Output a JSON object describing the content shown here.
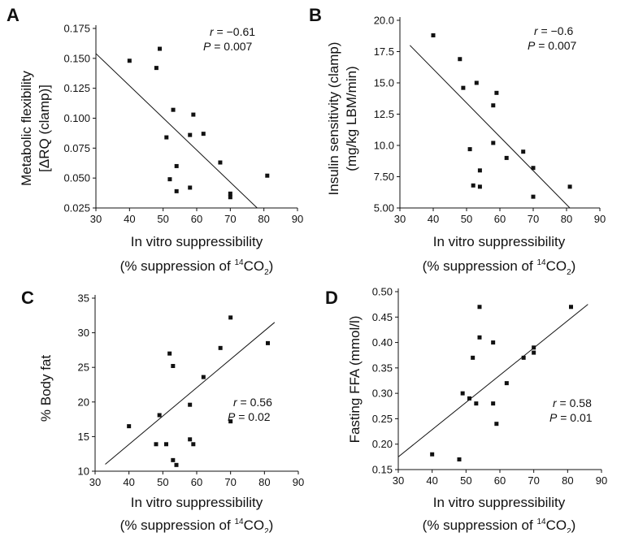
{
  "figure": {
    "panels": [
      {
        "letter": "A",
        "ylabel_lines": [
          "Metabolic flexibility",
          "[ΔRQ (clamp)]"
        ],
        "xlabel_line1": "In vitro suppressibility",
        "xlabel_line2_pre": "(% suppression of ",
        "xlabel_sup": "14",
        "xlabel_co": "CO",
        "xlabel_sub": "2",
        "xlabel_close": ")",
        "r_label": "r",
        "r_value": " = −0.61",
        "p_label": "P",
        "p_value": " = 0.007",
        "x_ticks": [
          "30",
          "40",
          "50",
          "60",
          "70",
          "80",
          "90"
        ],
        "y_ticks": [
          "0.025",
          "0.050",
          "0.075",
          "0.100",
          "0.125",
          "0.150",
          "0.175"
        ]
      },
      {
        "letter": "B",
        "ylabel_lines": [
          "Insulin sensitivity (clamp)",
          "(mg/kg LBM/min)"
        ],
        "xlabel_line1": "In vitro suppressibility",
        "xlabel_line2_pre": "(% suppression of ",
        "xlabel_sup": "14",
        "xlabel_co": "CO",
        "xlabel_sub": "2",
        "xlabel_close": ")",
        "r_label": "r",
        "r_value": " = −0.6",
        "p_label": "P",
        "p_value": " = 0.007",
        "x_ticks": [
          "30",
          "40",
          "50",
          "60",
          "70",
          "80",
          "90"
        ],
        "y_ticks": [
          "5.00",
          "7.50",
          "10.0",
          "12.5",
          "15.0",
          "17.5",
          "20.0"
        ]
      },
      {
        "letter": "C",
        "ylabel_lines": [
          "% Body fat"
        ],
        "xlabel_line1": "In vitro suppressibility",
        "xlabel_line2_pre": "(% suppression of ",
        "xlabel_sup": "14",
        "xlabel_co": "CO",
        "xlabel_sub": "2",
        "xlabel_close": ")",
        "r_label": "r",
        "r_value": " = 0.56",
        "p_label": "P",
        "p_value": " = 0.02",
        "x_ticks": [
          "30",
          "40",
          "50",
          "60",
          "70",
          "80",
          "90"
        ],
        "y_ticks": [
          "10",
          "15",
          "20",
          "25",
          "30",
          "35"
        ]
      },
      {
        "letter": "D",
        "ylabel_lines": [
          "Fasting FFA (mmol/l)"
        ],
        "xlabel_line1": "In vitro suppressibility",
        "xlabel_line2_pre": "(% suppression of ",
        "xlabel_sup": "14",
        "xlabel_co": "CO",
        "xlabel_sub": "2",
        "xlabel_close": ")",
        "r_label": "r",
        "r_value": " = 0.58",
        "p_label": "P",
        "p_value": " = 0.01",
        "x_ticks": [
          "30",
          "40",
          "50",
          "60",
          "70",
          "80",
          "90"
        ],
        "y_ticks": [
          "0.15",
          "0.20",
          "0.25",
          "0.30",
          "0.35",
          "0.40",
          "0.45",
          "0.50"
        ]
      }
    ]
  },
  "chart_data": [
    {
      "type": "scatter",
      "panel": "A",
      "xlabel": "In vitro suppressibility (% suppression of 14CO2)",
      "ylabel": "Metabolic flexibility [ΔRQ (clamp)]",
      "xlim": [
        30,
        90
      ],
      "ylim": [
        0.025,
        0.175
      ],
      "x": [
        40,
        48,
        49,
        51,
        52,
        53,
        54,
        54,
        58,
        58,
        59,
        62,
        67,
        70,
        70,
        81
      ],
      "y": [
        0.148,
        0.142,
        0.158,
        0.084,
        0.049,
        0.107,
        0.039,
        0.06,
        0.086,
        0.042,
        0.103,
        0.087,
        0.063,
        0.037,
        0.034,
        0.052
      ],
      "fit_line": {
        "x": [
          30,
          78
        ],
        "y": [
          0.154,
          0.025
        ]
      },
      "stats": {
        "r": -0.61,
        "P": 0.007
      }
    },
    {
      "type": "scatter",
      "panel": "B",
      "xlabel": "In vitro suppressibility (% suppression of 14CO2)",
      "ylabel": "Insulin sensitivity (clamp) (mg/kg LBM/min)",
      "xlim": [
        30,
        90
      ],
      "ylim": [
        5.0,
        20.0
      ],
      "x": [
        40,
        48,
        49,
        51,
        52,
        53,
        54,
        54,
        58,
        58,
        59,
        62,
        67,
        70,
        70,
        81
      ],
      "y": [
        18.8,
        16.9,
        14.6,
        9.7,
        6.8,
        15.0,
        6.7,
        8.0,
        13.2,
        10.2,
        14.2,
        9.0,
        9.5,
        8.2,
        5.9,
        6.7
      ],
      "fit_line": {
        "x": [
          33,
          81
        ],
        "y": [
          18.0,
          5.0
        ]
      },
      "stats": {
        "r": -0.6,
        "P": 0.007
      }
    },
    {
      "type": "scatter",
      "panel": "C",
      "xlabel": "In vitro suppressibility (% suppression of 14CO2)",
      "ylabel": "% Body fat",
      "xlim": [
        30,
        90
      ],
      "ylim": [
        10,
        35
      ],
      "x": [
        40,
        48,
        49,
        51,
        52,
        53,
        53,
        54,
        58,
        58,
        59,
        62,
        67,
        70,
        70,
        81
      ],
      "y": [
        16.5,
        13.9,
        18.1,
        13.9,
        27.0,
        11.6,
        25.2,
        10.9,
        19.6,
        14.6,
        13.9,
        23.6,
        27.8,
        17.2,
        32.2,
        28.5
      ],
      "fit_line": {
        "x": [
          33,
          83
        ],
        "y": [
          11.0,
          31.5
        ]
      },
      "stats": {
        "r": 0.56,
        "P": 0.02
      }
    },
    {
      "type": "scatter",
      "panel": "D",
      "xlabel": "In vitro suppressibility (% suppression of 14CO2)",
      "ylabel": "Fasting FFA (mmol/l)",
      "xlim": [
        30,
        90
      ],
      "ylim": [
        0.15,
        0.5
      ],
      "x": [
        40,
        48,
        49,
        51,
        52,
        53,
        54,
        54,
        58,
        58,
        59,
        62,
        67,
        70,
        70,
        81
      ],
      "y": [
        0.18,
        0.17,
        0.3,
        0.29,
        0.37,
        0.28,
        0.41,
        0.47,
        0.28,
        0.4,
        0.24,
        0.32,
        0.37,
        0.38,
        0.39,
        0.47
      ],
      "fit_line": {
        "x": [
          30,
          86
        ],
        "y": [
          0.175,
          0.475
        ]
      },
      "stats": {
        "r": 0.58,
        "P": 0.01
      }
    }
  ]
}
